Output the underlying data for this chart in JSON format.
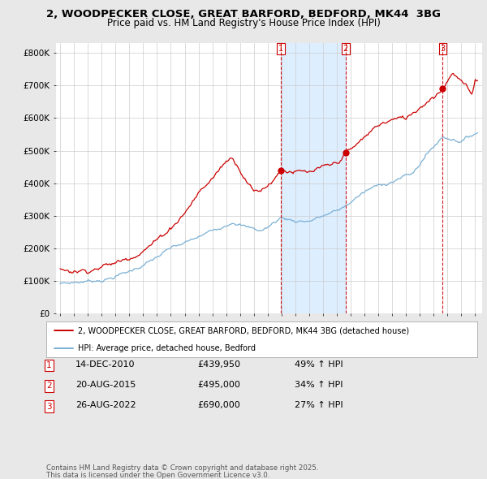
{
  "title_line1": "2, WOODPECKER CLOSE, GREAT BARFORD, BEDFORD, MK44  3BG",
  "title_line2": "Price paid vs. HM Land Registry's House Price Index (HPI)",
  "legend_label_red": "2, WOODPECKER CLOSE, GREAT BARFORD, BEDFORD, MK44 3BG (detached house)",
  "legend_label_blue": "HPI: Average price, detached house, Bedford",
  "footer_line1": "Contains HM Land Registry data © Crown copyright and database right 2025.",
  "footer_line2": "This data is licensed under the Open Government Licence v3.0.",
  "sale_markers": [
    {
      "num": "1",
      "date": "14-DEC-2010",
      "price": 439950,
      "price_fmt": "£439,950",
      "pct": "49% ↑ HPI",
      "x_year": 2010.958
    },
    {
      "num": "2",
      "date": "20-AUG-2015",
      "price": 495000,
      "price_fmt": "£495,000",
      "pct": "34% ↑ HPI",
      "x_year": 2015.633
    },
    {
      "num": "3",
      "date": "26-AUG-2022",
      "price": 690000,
      "price_fmt": "£690,000",
      "pct": "27% ↑ HPI",
      "x_year": 2022.65
    }
  ],
  "yticks": [
    0,
    100000,
    200000,
    300000,
    400000,
    500000,
    600000,
    700000,
    800000
  ],
  "ylabels": [
    "£0",
    "£100K",
    "£200K",
    "£300K",
    "£400K",
    "£500K",
    "£600K",
    "£700K",
    "£800K"
  ],
  "ylim": [
    0,
    830000
  ],
  "xlim_start": 1994.7,
  "xlim_end": 2025.5,
  "bg_color": "#e8e8e8",
  "plot_bg_color": "#ffffff",
  "red_color": "#cc0000",
  "blue_color": "#7ab0d4",
  "shade_color": "#ddeeff",
  "vline_color": "#cc0000",
  "grid_color": "#cccccc",
  "dot_color": "#cc0000"
}
